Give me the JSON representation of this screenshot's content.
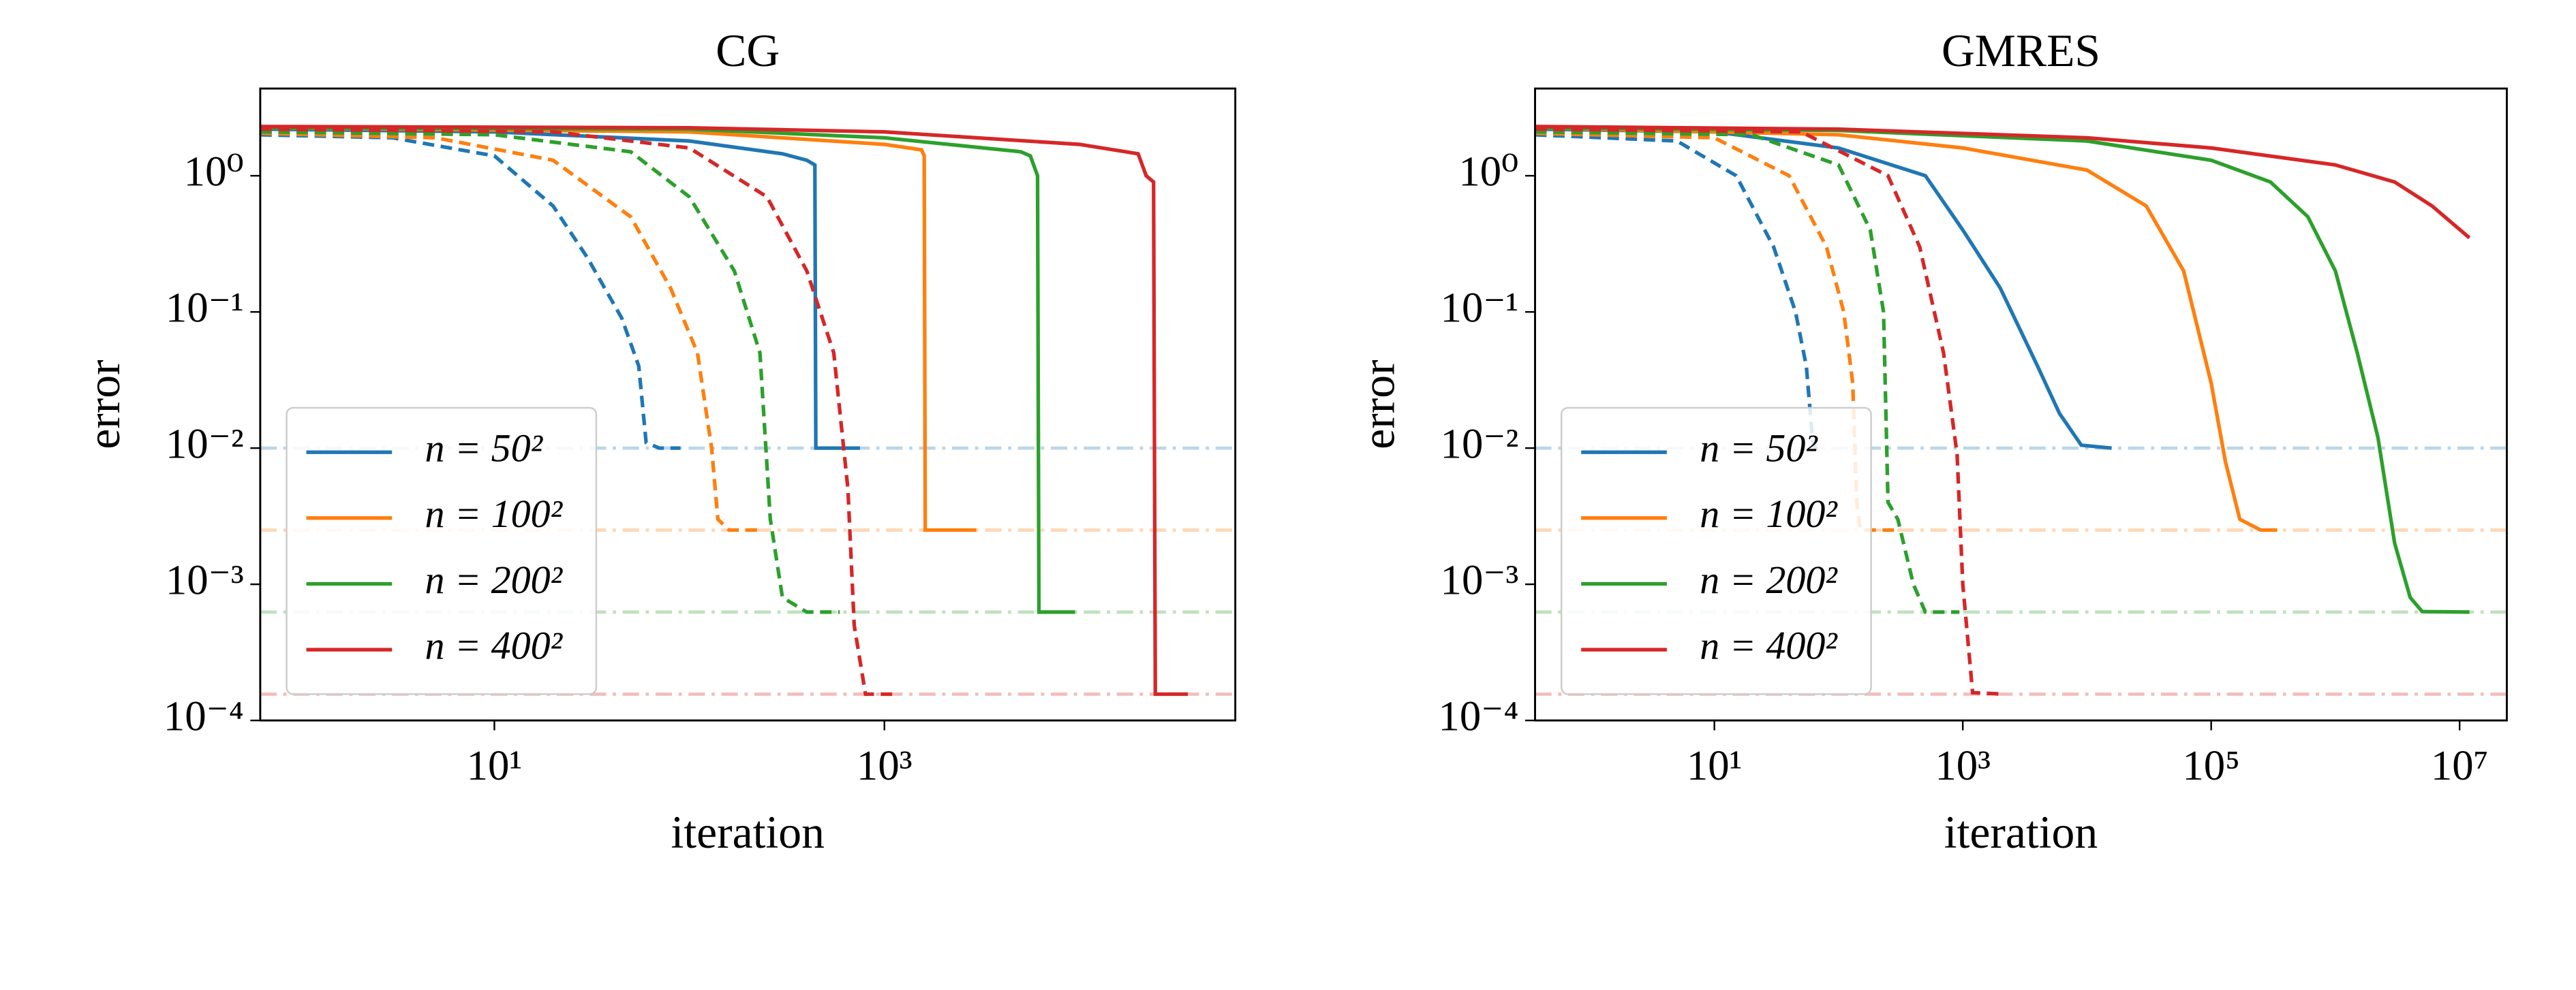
{
  "chart_data": [
    {
      "type": "line",
      "title": "CG",
      "xlabel": "iteration",
      "ylabel": "error",
      "xscale": "log",
      "yscale": "log",
      "xlim": [
        0.63,
        63000
      ],
      "ylim": [
        0.0001,
        4.37
      ],
      "xticks": [
        {
          "value": 10,
          "label": "10¹"
        },
        {
          "value": 1000,
          "label": "10³"
        }
      ],
      "yticks": [
        {
          "value": 0.0001,
          "label": "10⁻⁴"
        },
        {
          "value": 0.001,
          "label": "10⁻³"
        },
        {
          "value": 0.01,
          "label": "10⁻²"
        },
        {
          "value": 0.1,
          "label": "10⁻¹"
        },
        {
          "value": 1,
          "label": "10⁰"
        }
      ],
      "legend": "lower left",
      "reference_lines": [
        {
          "value": 0.01,
          "color": "#1f77b4"
        },
        {
          "value": 0.0025,
          "color": "#ff7f0e"
        },
        {
          "value": 0.000625,
          "color": "#2ca02c"
        },
        {
          "value": 0.000156,
          "color": "#d62728"
        }
      ],
      "series": [
        {
          "name": "n = 50²",
          "color": "#1f77b4",
          "style": "solid",
          "x": [
            0.63,
            10,
            100,
            300,
            400,
            440,
            445,
            750
          ],
          "values": [
            2.2,
            2.1,
            1.8,
            1.45,
            1.3,
            1.2,
            0.01,
            0.01
          ]
        },
        {
          "name": "n = 100²",
          "color": "#ff7f0e",
          "style": "solid",
          "x": [
            0.63,
            100,
            1000,
            1550,
            1600,
            1620,
            2960
          ],
          "values": [
            2.25,
            2.1,
            1.7,
            1.55,
            1.4,
            0.0025,
            0.0025
          ]
        },
        {
          "name": "n = 200²",
          "color": "#2ca02c",
          "style": "solid",
          "x": [
            0.63,
            100,
            1000,
            5000,
            5600,
            6100,
            6200,
            9500
          ],
          "values": [
            2.25,
            2.2,
            1.9,
            1.5,
            1.4,
            1.0,
            0.000625,
            0.000625
          ]
        },
        {
          "name": "n = 400²",
          "color": "#d62728",
          "style": "solid",
          "x": [
            0.63,
            100,
            1000,
            10000,
            20000,
            22000,
            24000,
            24500,
            36000
          ],
          "values": [
            2.3,
            2.25,
            2.1,
            1.7,
            1.45,
            1.0,
            0.9,
            0.000156,
            0.000156
          ]
        },
        {
          "color": "#1f77b4",
          "style": "dashed",
          "x": [
            0.63,
            3,
            10,
            20,
            30,
            45,
            55,
            60,
            70,
            90
          ],
          "values": [
            2.0,
            1.9,
            1.4,
            0.6,
            0.25,
            0.09,
            0.04,
            0.011,
            0.01,
            0.01
          ]
        },
        {
          "color": "#ff7f0e",
          "style": "dashed",
          "x": [
            0.63,
            5,
            20,
            50,
            80,
            110,
            130,
            140,
            160,
            225
          ],
          "values": [
            2.05,
            1.9,
            1.3,
            0.5,
            0.15,
            0.05,
            0.01,
            0.003,
            0.0025,
            0.0025
          ]
        },
        {
          "color": "#2ca02c",
          "style": "dashed",
          "x": [
            0.63,
            10,
            50,
            100,
            170,
            230,
            260,
            300,
            400,
            590
          ],
          "values": [
            2.1,
            2.0,
            1.5,
            0.7,
            0.2,
            0.05,
            0.003,
            0.0008,
            0.000625,
            0.000625
          ]
        },
        {
          "color": "#d62728",
          "style": "dashed",
          "x": [
            0.63,
            20,
            100,
            250,
            400,
            550,
            650,
            700,
            800,
            1170
          ],
          "values": [
            2.2,
            2.1,
            1.6,
            0.7,
            0.2,
            0.05,
            0.005,
            0.0005,
            0.000156,
            0.000156
          ]
        }
      ]
    },
    {
      "type": "line",
      "title": "GMRES",
      "xlabel": "iteration",
      "ylabel": "error",
      "xscale": "log",
      "yscale": "log",
      "xlim": [
        0.36,
        24000000
      ],
      "ylim": [
        0.0001,
        4.37
      ],
      "xticks": [
        {
          "value": 10,
          "label": "10¹"
        },
        {
          "value": 1000,
          "label": "10³"
        },
        {
          "value": 100000,
          "label": "10⁵"
        },
        {
          "value": 10000000,
          "label": "10⁷"
        }
      ],
      "yticks": [
        {
          "value": 0.0001,
          "label": "10⁻⁴"
        },
        {
          "value": 0.001,
          "label": "10⁻³"
        },
        {
          "value": 0.01,
          "label": "10⁻²"
        },
        {
          "value": 0.1,
          "label": "10⁻¹"
        },
        {
          "value": 1,
          "label": "10⁰"
        }
      ],
      "legend": "lower left",
      "reference_lines": [
        {
          "value": 0.01,
          "color": "#1f77b4"
        },
        {
          "value": 0.0025,
          "color": "#ff7f0e"
        },
        {
          "value": 0.000625,
          "color": "#2ca02c"
        },
        {
          "value": 0.000156,
          "color": "#d62728"
        }
      ],
      "series": [
        {
          "name": "n = 50²",
          "color": "#1f77b4",
          "style": "solid",
          "x": [
            0.36,
            10,
            100,
            500,
            1000,
            2000,
            4000,
            6000,
            9000,
            15800
          ],
          "values": [
            2.2,
            2.1,
            1.6,
            1.0,
            0.4,
            0.15,
            0.04,
            0.018,
            0.0105,
            0.01
          ]
        },
        {
          "name": "n = 100²",
          "color": "#ff7f0e",
          "style": "solid",
          "x": [
            0.36,
            100,
            1000,
            10000,
            30000,
            60000,
            100000,
            130000,
            170000,
            250000,
            340000
          ],
          "values": [
            2.25,
            2.0,
            1.6,
            1.1,
            0.6,
            0.2,
            0.03,
            0.008,
            0.003,
            0.0025,
            0.0025
          ]
        },
        {
          "name": "n = 200²",
          "color": "#2ca02c",
          "style": "solid",
          "x": [
            0.36,
            100,
            10000,
            100000,
            300000,
            600000,
            1000000,
            1500000,
            2200000,
            3000000,
            4000000,
            5000000,
            12000000
          ],
          "values": [
            2.25,
            2.15,
            1.8,
            1.3,
            0.9,
            0.5,
            0.2,
            0.05,
            0.012,
            0.002,
            0.0008,
            0.00063,
            0.000625
          ]
        },
        {
          "name": "n = 400²",
          "color": "#d62728",
          "style": "solid",
          "x": [
            0.36,
            100,
            10000,
            100000,
            1000000,
            3000000,
            6000000,
            12000000
          ],
          "values": [
            2.3,
            2.2,
            1.9,
            1.6,
            1.2,
            0.9,
            0.6,
            0.35
          ]
        },
        {
          "color": "#1f77b4",
          "style": "dashed",
          "x": [
            0.36,
            5,
            15,
            30,
            45,
            55,
            62,
            65,
            70
          ],
          "values": [
            2.0,
            1.8,
            1.0,
            0.3,
            0.1,
            0.04,
            0.011,
            0.01,
            0.01
          ]
        },
        {
          "color": "#ff7f0e",
          "style": "dashed",
          "x": [
            0.36,
            10,
            40,
            80,
            110,
            130,
            140,
            150,
            290
          ],
          "values": [
            2.05,
            1.9,
            1.0,
            0.3,
            0.1,
            0.03,
            0.004,
            0.0025,
            0.0025
          ]
        },
        {
          "color": "#2ca02c",
          "style": "dashed",
          "x": [
            0.36,
            20,
            100,
            180,
            230,
            250,
            300,
            400,
            500,
            940
          ],
          "values": [
            2.1,
            2.0,
            1.2,
            0.4,
            0.1,
            0.004,
            0.003,
            0.001,
            0.000625,
            0.000625
          ]
        },
        {
          "color": "#d62728",
          "style": "dashed",
          "x": [
            0.36,
            50,
            250,
            450,
            700,
            900,
            1000,
            1200,
            2150
          ],
          "values": [
            2.2,
            2.1,
            1.0,
            0.3,
            0.05,
            0.009,
            0.001,
            0.00016,
            0.000156
          ]
        }
      ]
    }
  ]
}
